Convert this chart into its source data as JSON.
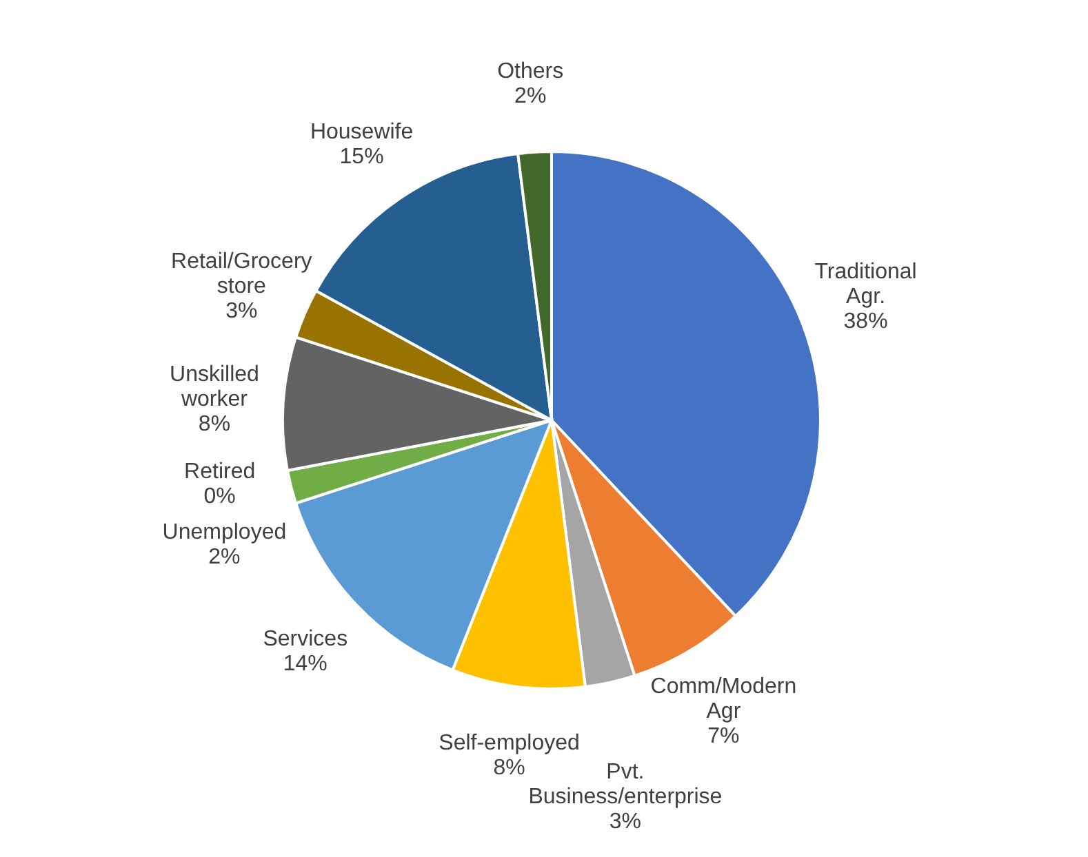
{
  "chart_data": {
    "type": "pie",
    "categories": [
      "Traditional Agr.",
      "Comm/Modern Agr",
      "Pvt. Business/enterprise",
      "Self-employed",
      "Services",
      "Unemployed",
      "Retired",
      "Unskilled worker",
      "Retail/Grocery store",
      "Housewife",
      "Others"
    ],
    "values": [
      38,
      7,
      3,
      8,
      14,
      2,
      0,
      8,
      3,
      15,
      2
    ],
    "value_labels": [
      "38%",
      "7%",
      "3%",
      "8%",
      "14%",
      "2%",
      "0%",
      "8%",
      "3%",
      "15%",
      "2%"
    ],
    "colors": [
      "#4472c4",
      "#ed7d31",
      "#a5a5a5",
      "#ffc000",
      "#5b9bd5",
      "#70ad47",
      "#264478",
      "#636363",
      "#997300",
      "#255e91",
      "#43682b"
    ]
  }
}
